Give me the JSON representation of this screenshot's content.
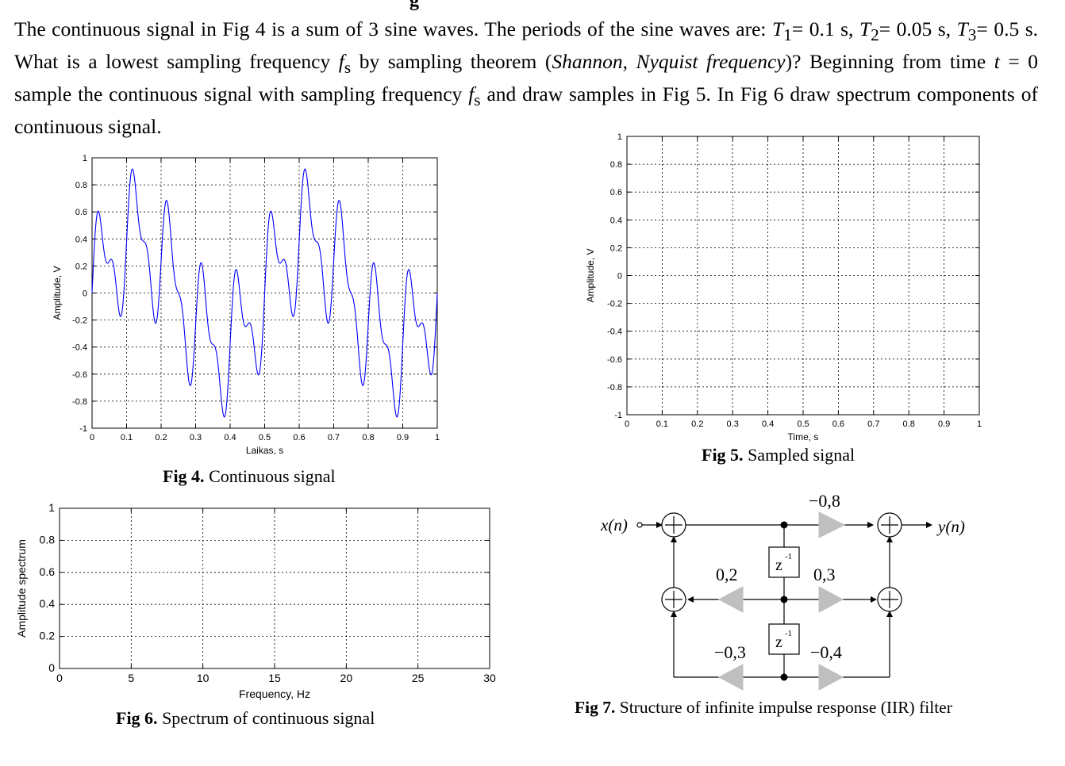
{
  "header_fragment": "g",
  "problem": {
    "text_html": "The continuous signal in Fig 4 is a sum of 3 sine waves. The periods of the sine waves are: <i>T</i><sub>1</sub>= 0.1 s, <i>T</i><sub>2</sub>= 0.05 s, <i>T</i><sub>3</sub>= 0.5 s. What is a lowest sampling frequency <i>f</i><sub>s</sub> by sampling theorem (<i>Shannon</i>, <i>Nyquist frequency</i>)? Beginning from time <i>t</i> = 0 sample the continuous signal with sampling frequency <i>f</i><sub>s</sub> and draw samples in Fig 5. In Fig 6 draw spectrum components of continuous signal."
  },
  "fig4": {
    "caption_bold": "Fig 4.",
    "caption_rest": " Continuous signal",
    "chart_data": {
      "type": "line",
      "title": "",
      "xlabel": "Laikas, s",
      "ylabel": "Amplitude, V",
      "xlim": [
        0,
        1
      ],
      "ylim": [
        -1,
        1
      ],
      "xticks": [
        "0",
        "0.1",
        "0.2",
        "0.3",
        "0.4",
        "0.5",
        "0.6",
        "0.7",
        "0.8",
        "0.9",
        "1"
      ],
      "yticks": [
        "1",
        "0.8",
        "0.6",
        "0.4",
        "0.2",
        "0",
        "-0.2",
        "-0.4",
        "-0.6",
        "-0.8",
        "-1"
      ],
      "grid": true,
      "line_color": "#0000ff",
      "series": [
        {
          "components": [
            {
              "amplitude": 0.4,
              "period": 0.1
            },
            {
              "amplitude": 0.2,
              "period": 0.05
            },
            {
              "amplitude": 0.4,
              "period": 0.5
            }
          ]
        }
      ]
    }
  },
  "fig5": {
    "caption_bold": "Fig 5.",
    "caption_rest": " Sampled signal",
    "chart_data": {
      "type": "scatter",
      "xlabel": "Time, s",
      "ylabel": "Amplitude, V",
      "xlim": [
        0,
        1
      ],
      "ylim": [
        -1,
        1
      ],
      "xticks": [
        "0",
        "0.1",
        "0.2",
        "0.3",
        "0.4",
        "0.5",
        "0.6",
        "0.7",
        "0.8",
        "0.9",
        "1"
      ],
      "yticks": [
        "1",
        "0.8",
        "0.6",
        "0.4",
        "0.2",
        "0",
        "-0.2",
        "-0.4",
        "-0.6",
        "-0.8",
        "-1"
      ],
      "grid": true,
      "series": []
    }
  },
  "fig6": {
    "caption_bold": "Fig 6.",
    "caption_rest": " Spectrum of continuous signal",
    "chart_data": {
      "type": "bar",
      "xlabel": "Frequency, Hz",
      "ylabel": "Amplitude spectrum",
      "xlim": [
        0,
        30
      ],
      "ylim": [
        0,
        1
      ],
      "xticks": [
        "0",
        "5",
        "10",
        "15",
        "20",
        "25",
        "30"
      ],
      "yticks": [
        "1",
        "0.8",
        "0.6",
        "0.4",
        "0.2",
        "0"
      ],
      "grid": true,
      "series": []
    }
  },
  "fig7": {
    "caption_bold": "Fig 7.",
    "caption_rest": " Structure of infinite impulse response (IIR) filter",
    "input_label": "x(n)",
    "output_label": "y(n)",
    "delay_label": "z",
    "delay_exp": "-1",
    "coef_top": "−0,8",
    "coef_mid_left": "0,2",
    "coef_mid_right": "0,3",
    "coef_bot_left": "−0,3",
    "coef_bot_right": "−0,4"
  }
}
